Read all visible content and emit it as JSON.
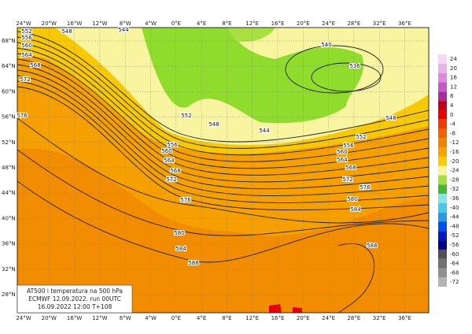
{
  "lon_labels": [
    "24°W",
    "20°W",
    "16°W",
    "12°W",
    "8°W",
    "4°W",
    "0°E",
    "4°E",
    "8°E",
    "12°E",
    "16°E",
    "20°E",
    "24°E",
    "28°E",
    "32°E",
    "36°E"
  ],
  "lat_labels": [
    "68°N",
    "64°N",
    "60°N",
    "56°N",
    "52°N",
    "48°N",
    "44°N",
    "40°N",
    "36°N",
    "32°N",
    "28°N"
  ],
  "contour_labels": [
    552,
    548,
    544,
    556,
    560,
    564,
    568,
    572,
    576,
    552,
    548,
    544,
    540,
    536,
    548,
    552,
    556,
    560,
    564,
    568,
    572,
    576,
    580,
    584,
    556,
    560,
    564,
    568,
    572,
    576,
    580,
    584,
    588,
    588
  ],
  "colorbar": {
    "labels": [
      24,
      20,
      16,
      12,
      8,
      4,
      0,
      -4,
      -8,
      -12,
      -16,
      -20,
      -24,
      -28,
      -32,
      -36,
      -40,
      -44,
      -48,
      -52,
      -56,
      -60,
      -64,
      -68,
      -72
    ],
    "colors": [
      "#f4d8f4",
      "#eab4ea",
      "#dc8cdc",
      "#c85ac8",
      "#a82ca0",
      "#c00018",
      "#e80000",
      "#f03c00",
      "#f06400",
      "#f08400",
      "#f8a400",
      "#f8cc00",
      "#f8f4a0",
      "#a8e040",
      "#48b830",
      "#88e4e4",
      "#48c8e8",
      "#2898e8",
      "#0050f0",
      "#0018c0",
      "#000088",
      "#505050",
      "#707070",
      "#909090",
      "#b4b4b4"
    ]
  },
  "info": [
    "AT500 i temperatura na 500 hPa",
    "ECMWF 12.09.2022. run 00UTC",
    "16.09.2022 12:00  T+108"
  ]
}
